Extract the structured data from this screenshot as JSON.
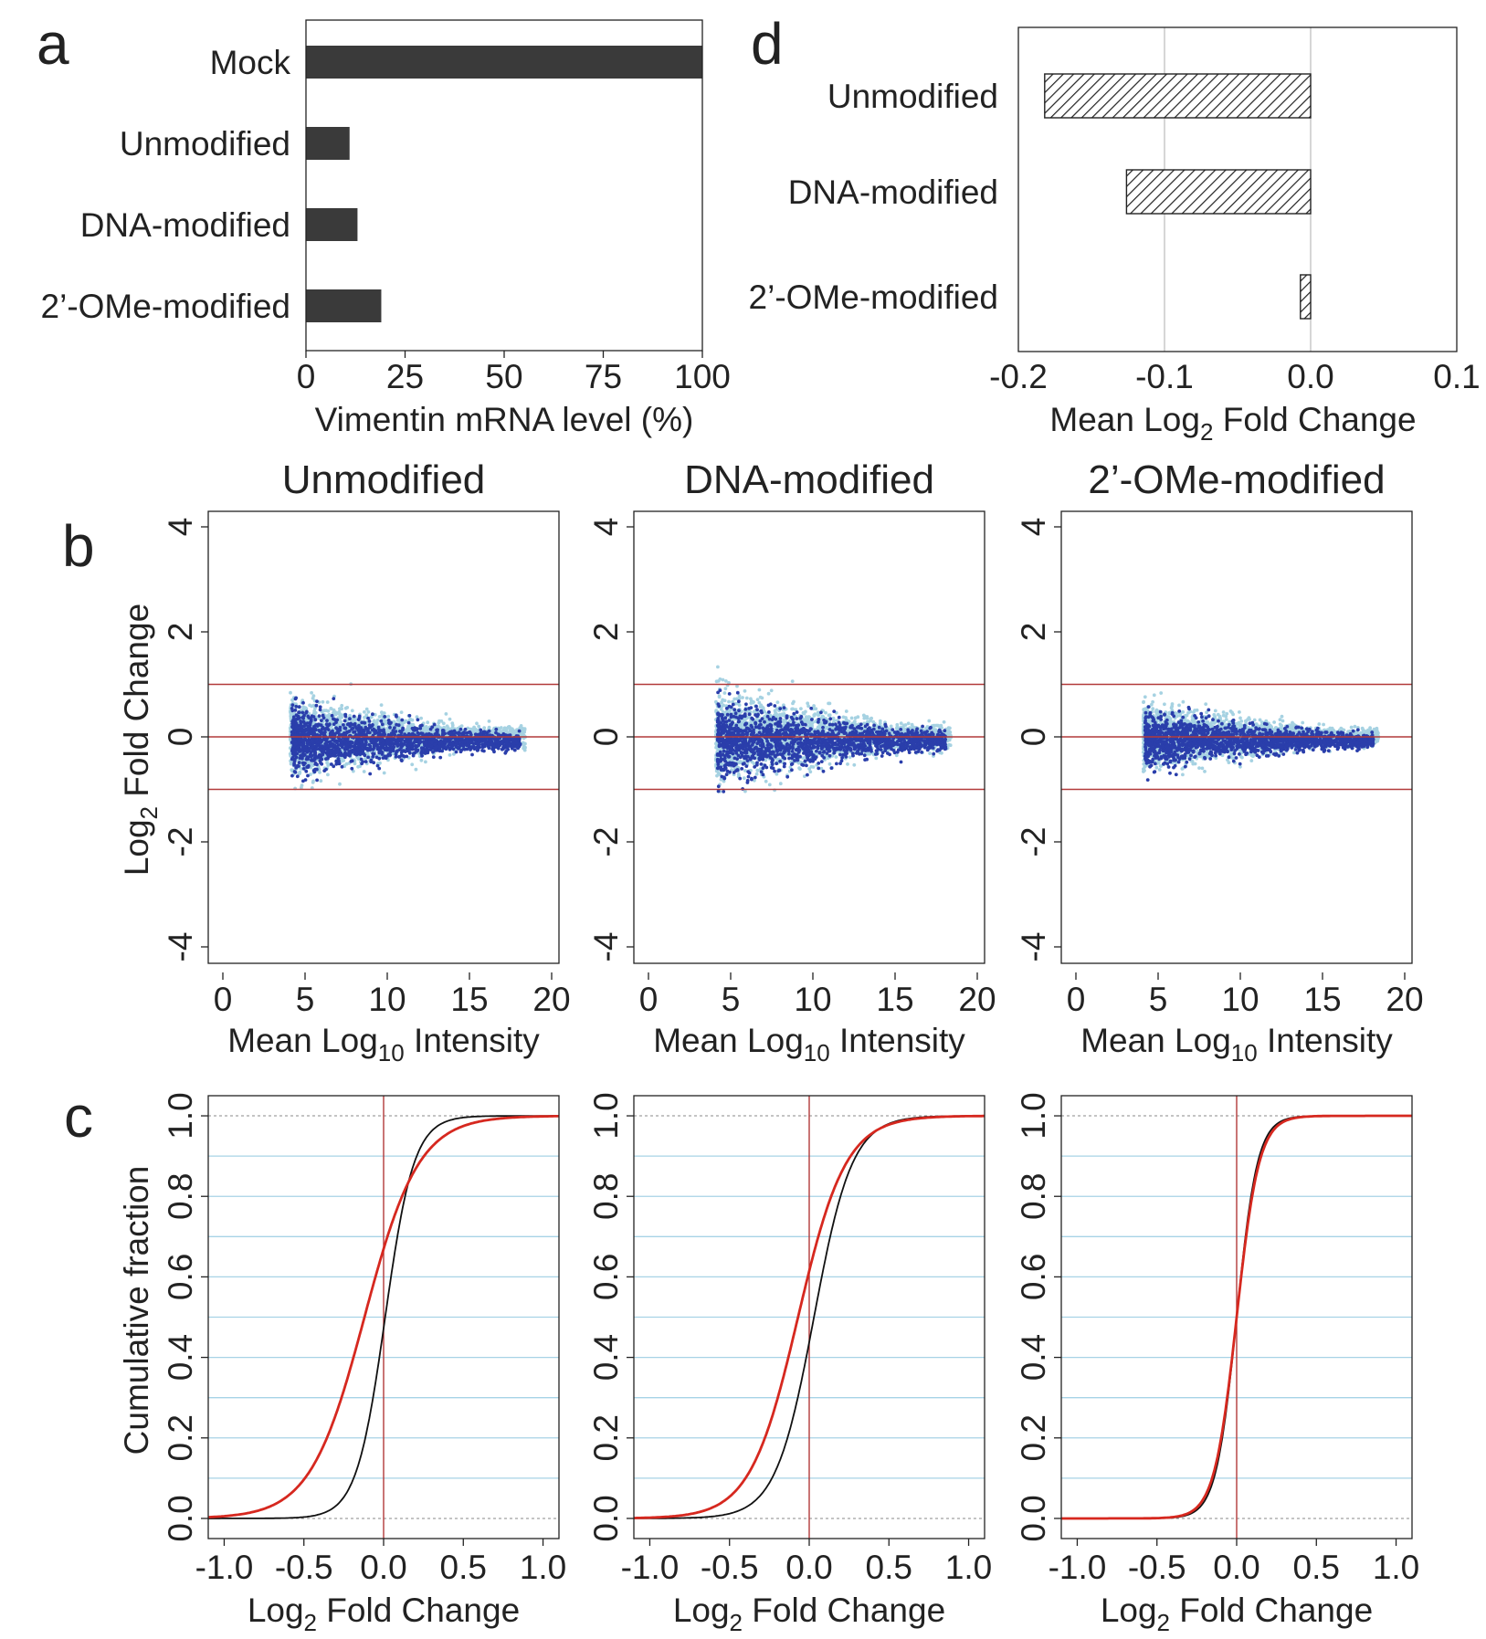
{
  "colors": {
    "bar": "#3a3a3a",
    "hatch": "#222222",
    "point_light": "#a6d2e2",
    "point_dark": "#2a3eab",
    "ref_line": "#b23a3a",
    "cdf_treated": "#d6281f",
    "cdf_control": "#111111",
    "gridline": "#a7d3e6"
  },
  "chart_data": [
    {
      "id": "a",
      "panel_label": "a",
      "type": "bar",
      "orientation": "horizontal",
      "categories": [
        "Mock",
        "Unmodified",
        "DNA-modified",
        "2’-OMe-modified"
      ],
      "values": [
        100,
        11,
        13,
        19
      ],
      "xlabel": "Vimentin mRNA level (%)",
      "xlim": [
        0,
        100
      ],
      "xticks": [
        "0",
        "25",
        "50",
        "75",
        "100"
      ],
      "grid": false
    },
    {
      "id": "d",
      "panel_label": "d",
      "type": "bar",
      "orientation": "horizontal",
      "fill": "hatched",
      "categories": [
        "Unmodified",
        "DNA-modified",
        "2’-OMe-modified"
      ],
      "values": [
        -0.182,
        -0.126,
        -0.007
      ],
      "xlabel_pre": "Mean Log",
      "xlabel_sub": "2",
      "xlabel_post": " Fold Change",
      "xlim": [
        -0.2,
        0.1
      ],
      "xticks": [
        "-0.2",
        "-0.1",
        "0.0",
        "0.1"
      ],
      "grid": true
    },
    {
      "id": "b",
      "panel_label": "b",
      "type": "scatter",
      "panels": [
        {
          "title": "Unmodified",
          "seed": 11,
          "spread": 0.3
        },
        {
          "title": "DNA-modified",
          "seed": 23,
          "spread": 0.36
        },
        {
          "title": "2’-OMe-modified",
          "seed": 37,
          "spread": 0.26
        }
      ],
      "xlim": [
        0,
        20
      ],
      "ylim": [
        -4,
        4
      ],
      "xticks": [
        "0",
        "5",
        "10",
        "15",
        "20"
      ],
      "yticks": [
        "-4",
        "-2",
        "0",
        "2",
        "4"
      ],
      "reference_lines_y": [
        -1,
        0,
        1
      ],
      "xlabel_pre": "Mean Log",
      "xlabel_sub": "10",
      "xlabel_post": " Intensity",
      "ylabel_pre": "Log",
      "ylabel_sub": "2",
      "ylabel_post": " Fold Change"
    },
    {
      "id": "c",
      "panel_label": "c",
      "type": "line",
      "panels": [
        {
          "treated_shift": -0.12,
          "treated_scale": 0.17,
          "control_shift": 0.01,
          "control_scale": 0.09
        },
        {
          "treated_shift": -0.07,
          "treated_scale": 0.15,
          "control_shift": 0.03,
          "control_scale": 0.12
        },
        {
          "treated_shift": 0.0,
          "treated_scale": 0.07,
          "control_shift": 0.0,
          "control_scale": 0.065
        }
      ],
      "xlim": [
        -1.1,
        1.1
      ],
      "ylim": [
        -0.05,
        1.05
      ],
      "xticks": [
        "-1.0",
        "-0.5",
        "0.0",
        "0.5",
        "1.0"
      ],
      "yticks": [
        "0.0",
        "0.2",
        "0.4",
        "0.6",
        "0.8",
        "1.0"
      ],
      "hgrid": [
        0.1,
        0.2,
        0.3,
        0.4,
        0.5,
        0.6,
        0.7,
        0.8,
        0.9
      ],
      "vertical_line_x": 0,
      "xlabel_pre": "Log",
      "xlabel_sub": "2",
      "xlabel_post": " Fold Change",
      "ylabel": "Cumulative fraction"
    }
  ]
}
